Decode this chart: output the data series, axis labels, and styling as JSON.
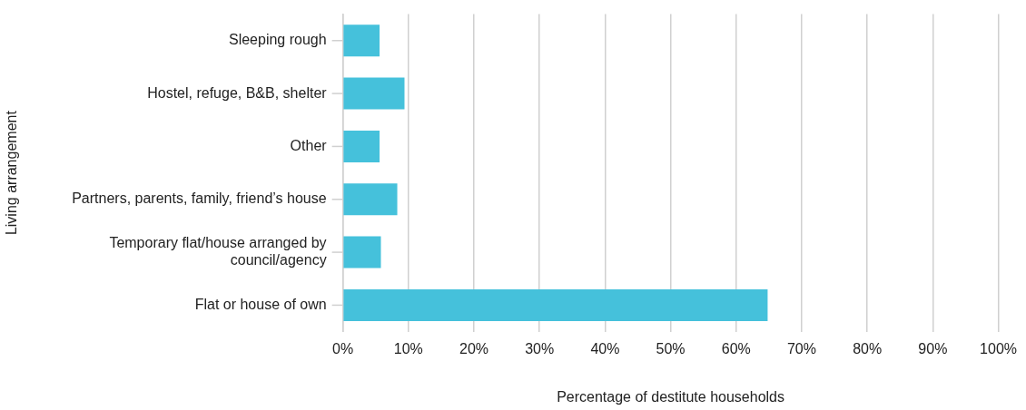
{
  "chart_data": {
    "type": "bar",
    "orientation": "horizontal",
    "xlabel": "Percentage of destitute households",
    "ylabel": "Living arrangement",
    "categories": [
      "Sleeping rough",
      "Hostel, refuge, B&B, shelter",
      "Other",
      "Partners, parents, family, friend’s house",
      "Temporary flat/house arranged by council/agency",
      "Flat or house of own"
    ],
    "values": [
      5.6,
      9.4,
      5.6,
      8.3,
      5.8,
      64.8
    ],
    "color": "#45c1db",
    "xlim": [
      0,
      100
    ],
    "xticks": [
      {
        "value": 0,
        "label": "0%"
      },
      {
        "value": 10,
        "label": "10%"
      },
      {
        "value": 20,
        "label": "20%"
      },
      {
        "value": 30,
        "label": "30%"
      },
      {
        "value": 40,
        "label": "40%"
      },
      {
        "value": 50,
        "label": "50%"
      },
      {
        "value": 60,
        "label": "60%"
      },
      {
        "value": 70,
        "label": "70%"
      },
      {
        "value": 80,
        "label": "80%"
      },
      {
        "value": 90,
        "label": "90%"
      },
      {
        "value": 100,
        "label": "100%"
      }
    ],
    "grid": "x",
    "legend": false
  }
}
